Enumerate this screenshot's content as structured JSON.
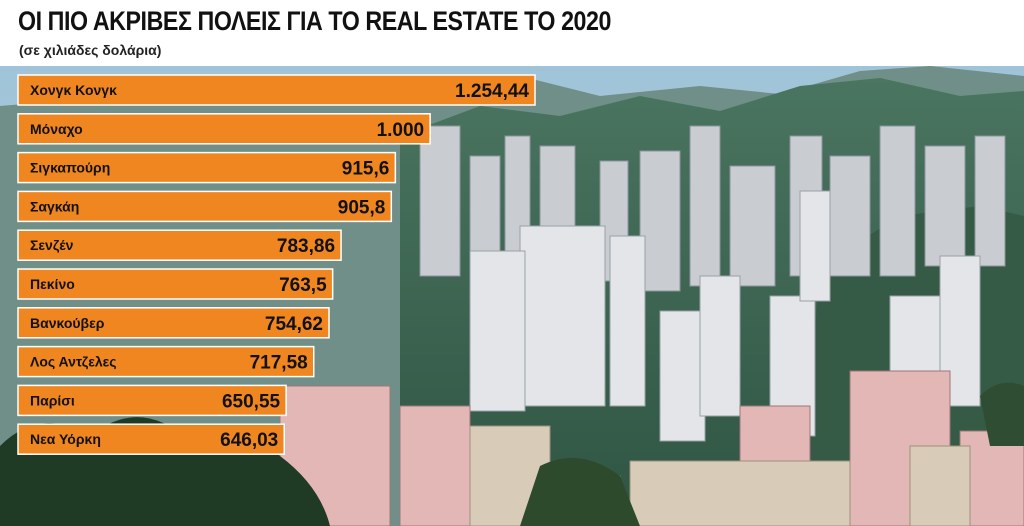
{
  "header": {
    "title": "ΟΙ ΠΙΟ ΑΚΡΙΒΕΣ ΠΟΛΕΙΣ ΓΙΑ ΤΟ REAL ESTATE ΤΟ 2020",
    "subtitle": "(σε χιλιάδες δολάρια)"
  },
  "colors": {
    "bar": "#f0861f",
    "bar_stroke": "#ffffff",
    "text": "#111111",
    "sky": "#a9c8d9",
    "mountain": "#3f6a55"
  },
  "chart_data": {
    "type": "bar",
    "orientation": "horizontal",
    "title": "ΟΙ ΠΙΟ ΑΚΡΙΒΕΣ ΠΟΛΕΙΣ ΓΙΑ ΤΟ REAL ESTATE ΤΟ 2020",
    "subtitle": "(σε χιλιάδες δολάρια)",
    "categories": [
      "Χονγκ Κονγκ",
      "Μόναχο",
      "Σιγκαπούρη",
      "Σαγκάη",
      "Σενζέν",
      "Πεκίνο",
      "Βανκούβερ",
      "Λος Αντζελες",
      "Παρίσι",
      "Νεα Υόρκη"
    ],
    "values": [
      1254.44,
      1000,
      915.6,
      905.8,
      783.86,
      763.5,
      754.62,
      717.58,
      650.55,
      646.03
    ],
    "value_labels": [
      "1.254,44",
      "1.000",
      "915,6",
      "905,8",
      "783,86",
      "763,5",
      "754,62",
      "717,58",
      "650,55",
      "646,03"
    ],
    "xlim": [
      0,
      1254.44
    ],
    "grid": false,
    "legend": "none"
  }
}
